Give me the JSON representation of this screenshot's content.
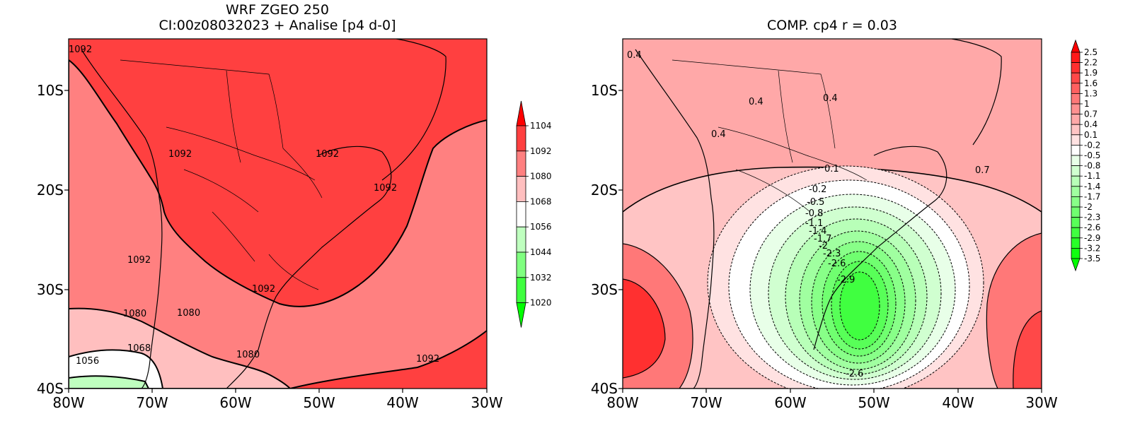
{
  "left_panel": {
    "title_line1": "WRF ZGEO 250",
    "title_line2": "CI:00z08032023 + Analise  [p4 d-0]",
    "lat_labels": [
      "10S",
      "20S",
      "30S",
      "40S"
    ],
    "lon_labels": [
      "80W",
      "70W",
      "60W",
      "50W",
      "40W",
      "30W"
    ],
    "contour_labels": [
      "1092",
      "1092",
      "1092",
      "1092",
      "1092",
      "1092",
      "1092",
      "1080",
      "1080",
      "1080",
      "1068",
      "1056"
    ],
    "colorbar": {
      "labels": [
        "1104",
        "1092",
        "1080",
        "1068",
        "1056",
        "1044",
        "1032",
        "1020"
      ],
      "colors": [
        "#ff0000",
        "#ff4040",
        "#ff8080",
        "#ffbfbf",
        "#ffffff",
        "#bfffbf",
        "#80ff80",
        "#40ff40",
        "#00ff00"
      ]
    }
  },
  "right_panel": {
    "title": "COMP. cp4  r =  0.03",
    "lat_labels": [
      "10S",
      "20S",
      "30S",
      "40S"
    ],
    "lon_labels": [
      "80W",
      "70W",
      "60W",
      "50W",
      "40W",
      "30W"
    ],
    "contour_labels": [
      "0.4",
      "0.4",
      "0.4",
      "0.4",
      "0.1",
      "0.7",
      "-0.2",
      "-0.5",
      "-0.8",
      "-1.1",
      "-1.4",
      "-1.7",
      "-2",
      "-2.3",
      "-2.6",
      "-2.9",
      "-2.6"
    ],
    "colorbar": {
      "labels": [
        "2.5",
        "2.2",
        "1.9",
        "1.6",
        "1.3",
        "1",
        "0.7",
        "0.4",
        "0.1",
        "-0.2",
        "-0.5",
        "-0.8",
        "-1.1",
        "-1.4",
        "-1.7",
        "-2",
        "-2.3",
        "-2.6",
        "-2.9",
        "-3.2",
        "-3.5"
      ],
      "colors": [
        "#ff0000",
        "#ff1a1a",
        "#ff3030",
        "#ff4848",
        "#ff6060",
        "#ff7878",
        "#ff9090",
        "#ffa8a8",
        "#ffc4c4",
        "#ffe2e2",
        "#ffffff",
        "#e8ffe8",
        "#d0ffd0",
        "#b8ffb8",
        "#a0ffa0",
        "#88ff88",
        "#70ff70",
        "#58ff58",
        "#40ff40",
        "#28ff28",
        "#10ff10",
        "#00ff00"
      ]
    }
  }
}
